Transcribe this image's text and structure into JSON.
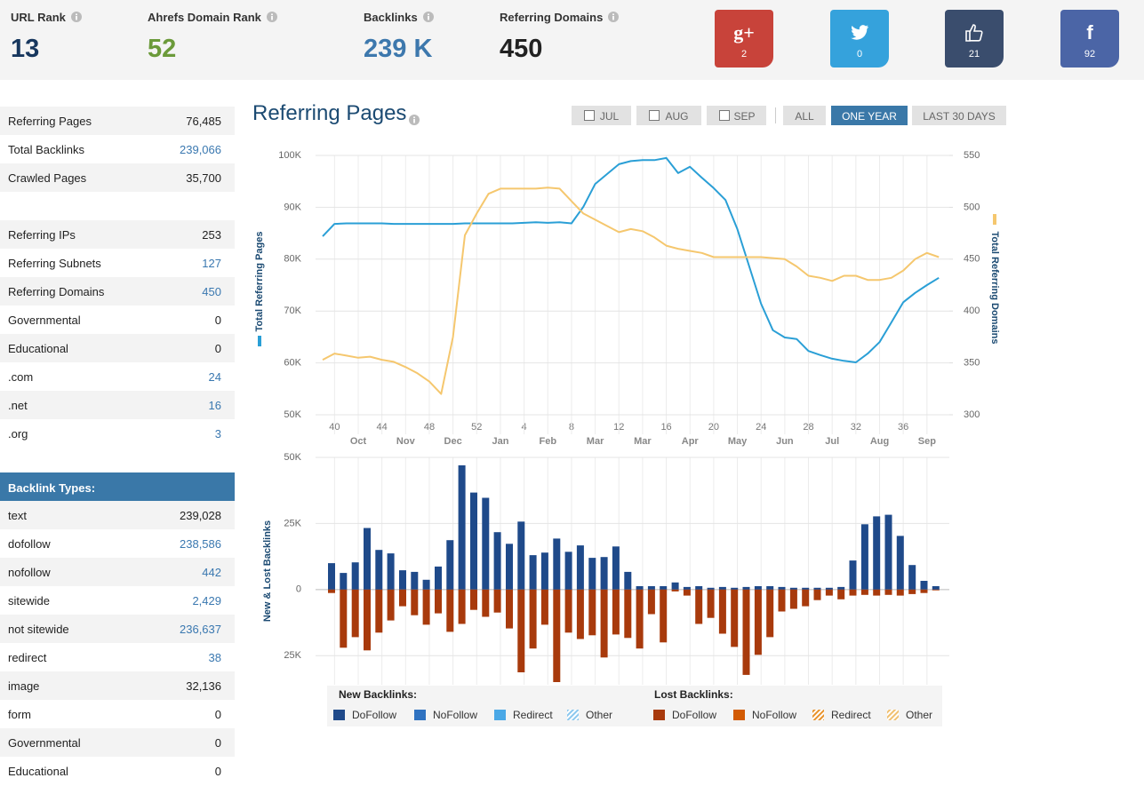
{
  "header": {
    "stats": [
      {
        "label": "URL Rank",
        "value": 13,
        "color": "#17375e"
      },
      {
        "label": "Ahrefs Domain Rank",
        "value": 52,
        "color": "#6b9a3a"
      },
      {
        "label": "Backlinks",
        "value": "239 K",
        "color": "#3d78ad"
      },
      {
        "label": "Referring Domains",
        "value": 450,
        "color": "#222222"
      }
    ],
    "social": [
      {
        "icon": "g+",
        "count": 2,
        "color": "#c8433a"
      },
      {
        "count": 0,
        "color": "#35a2dc"
      },
      {
        "count": 21,
        "color": "#3a4d6d"
      },
      {
        "icon": "f",
        "count": 92,
        "color": "#4b65a6"
      }
    ]
  },
  "sidebar": {
    "summary": [
      {
        "label": "Referring Pages",
        "value": "76,485"
      },
      {
        "label": "Total Backlinks",
        "value": "239,066",
        "link": true
      },
      {
        "label": "Crawled Pages",
        "value": "35,700"
      }
    ],
    "domains": [
      {
        "label": "Referring IPs",
        "value": "253"
      },
      {
        "label": "Referring Subnets",
        "value": "127",
        "link": true
      },
      {
        "label": "Referring Domains",
        "value": "450",
        "link": true
      },
      {
        "label": "Governmental",
        "value": "0"
      },
      {
        "label": "Educational",
        "value": "0"
      },
      {
        "label": ".com",
        "value": "24",
        "link": true
      },
      {
        "label": ".net",
        "value": "16",
        "link": true
      },
      {
        "label": ".org",
        "value": "3",
        "link": true
      }
    ],
    "types_title": "Backlink Types:",
    "types": [
      {
        "label": "text",
        "value": "239,028"
      },
      {
        "label": "dofollow",
        "value": "238,586",
        "link": true
      },
      {
        "label": "nofollow",
        "value": "442",
        "link": true
      },
      {
        "label": "sitewide",
        "value": "2,429",
        "link": true
      },
      {
        "label": "not sitewide",
        "value": "236,637",
        "link": true
      },
      {
        "label": "redirect",
        "value": "38",
        "link": true
      },
      {
        "label": "image",
        "value": "32,136"
      },
      {
        "label": "form",
        "value": "0"
      },
      {
        "label": "Governmental",
        "value": "0"
      },
      {
        "label": "Educational",
        "value": "0"
      }
    ]
  },
  "chart": {
    "title": "Referring Pages",
    "filters": [
      {
        "label": "JUL",
        "checkbox": true
      },
      {
        "label": "AUG",
        "checkbox": true
      },
      {
        "label": "SEP",
        "checkbox": true
      },
      {
        "label": "ALL"
      },
      {
        "label": "ONE YEAR",
        "active": true
      },
      {
        "label": "LAST 30 DAYS"
      }
    ]
  },
  "chart_data": [
    {
      "type": "line",
      "ylabel": "Total Referring Pages",
      "y2label": "Total Referring Domains",
      "categories": [
        null,
        "40",
        null,
        null,
        null,
        "44",
        null,
        null,
        null,
        "48",
        null,
        null,
        null,
        "52",
        null,
        null,
        null,
        "4",
        null,
        null,
        null,
        "8",
        null,
        null,
        null,
        "12",
        null,
        null,
        null,
        "16",
        null,
        null,
        null,
        "20",
        null,
        null,
        null,
        "24",
        null,
        null,
        null,
        "28",
        null,
        null,
        null,
        "32",
        null,
        null,
        null,
        "36",
        null,
        null,
        null
      ],
      "months": [
        null,
        null,
        null,
        "Oct",
        null,
        null,
        null,
        "Nov",
        null,
        null,
        null,
        "Dec",
        null,
        null,
        null,
        "Jan",
        null,
        null,
        null,
        "Feb",
        null,
        null,
        null,
        "Mar",
        null,
        null,
        null,
        "Mar",
        null,
        null,
        null,
        "Apr",
        null,
        null,
        null,
        "May",
        null,
        null,
        null,
        "Jun",
        null,
        null,
        null,
        "Jul",
        null,
        null,
        null,
        "Aug",
        null,
        null,
        null,
        "Sep",
        null
      ],
      "ylim": [
        50000,
        100000
      ],
      "yticks": [
        {
          "value": 50000,
          "label": "50K"
        },
        {
          "value": 60000,
          "label": "60K"
        },
        {
          "value": 70000,
          "label": "70K"
        },
        {
          "value": 80000,
          "label": "80K"
        },
        {
          "value": 90000,
          "label": "90K"
        },
        {
          "value": 100000,
          "label": "100K"
        }
      ],
      "y2lim": [
        300,
        550
      ],
      "y2ticks": [
        300,
        350,
        400,
        450,
        500,
        550
      ],
      "grid": true,
      "series": [
        {
          "color": "#2a9fd6",
          "values": [
            84400,
            86800,
            86900,
            86900,
            86900,
            86900,
            86800,
            86800,
            86800,
            86800,
            86800,
            86800,
            86900,
            86900,
            86900,
            86900,
            86900,
            87000,
            87100,
            87000,
            87100,
            86900,
            90100,
            94500,
            96400,
            98300,
            98900,
            99100,
            99100,
            99500,
            96600,
            97800,
            95700,
            93700,
            91400,
            85800,
            78600,
            71400,
            66300,
            64900,
            64600,
            62300,
            61500,
            60800,
            60400,
            60100,
            61800,
            64000,
            67800,
            71700,
            73500,
            75000,
            76400
          ]
        },
        {
          "color": "#f5c76e",
          "axis": "y2",
          "values": [
            353,
            359,
            357,
            355,
            356,
            353,
            351,
            346,
            340,
            332,
            320,
            375,
            473,
            494,
            513,
            518,
            518,
            518,
            518,
            519,
            518,
            506,
            494,
            488,
            482,
            476,
            479,
            477,
            471,
            463,
            460,
            458,
            456,
            452,
            452,
            452,
            452,
            452,
            451,
            450,
            443,
            434,
            432,
            429,
            434,
            434,
            430,
            430,
            432,
            439,
            450,
            456,
            452
          ]
        }
      ]
    },
    {
      "type": "bar",
      "ylabel": "New & Lost Backlinks",
      "ylim": [
        -36000,
        50000
      ],
      "yticks": [
        {
          "value": -25000,
          "label": "25K"
        },
        0,
        {
          "value": 25000,
          "label": "25K"
        },
        {
          "value": 50000,
          "label": "50K"
        }
      ],
      "grid": true,
      "legend_groups": [
        "New Backlinks:",
        "Lost Backlinks:"
      ],
      "series": [
        {
          "name": "DoFollow",
          "group": 0,
          "color": "#1f4a8a",
          "values": [
            10000,
            6300,
            10300,
            23300,
            15000,
            13700,
            7300,
            6700,
            3700,
            8700,
            18700,
            47000,
            36700,
            34700,
            21700,
            17300,
            25700,
            13000,
            14000,
            19300,
            14300,
            16700,
            12000,
            12300,
            16300,
            6700,
            1300,
            1300,
            1300,
            2700,
            1000,
            1300,
            700,
            1000,
            700,
            1000,
            1300,
            1300,
            1000,
            700,
            700,
            700,
            700,
            1000,
            11000,
            24700,
            27700,
            28300,
            20300,
            9300,
            3300,
            1300
          ]
        },
        {
          "name": "NoFollow",
          "group": 0,
          "color": "#2f72c0"
        },
        {
          "name": "Redirect",
          "group": 0,
          "color": "#4aa8e6"
        },
        {
          "name": "Other",
          "group": 0,
          "color": "#8cc8ee",
          "hatched": true
        },
        {
          "name": "DoFollow",
          "group": 1,
          "color": "#a83a0c",
          "values": [
            -1300,
            -22000,
            -18000,
            -23000,
            -16300,
            -11700,
            -6300,
            -9700,
            -13300,
            -9000,
            -16000,
            -13000,
            -7700,
            -10300,
            -8700,
            -14700,
            -31300,
            -22300,
            -13300,
            -35000,
            -16300,
            -18700,
            -17300,
            -25700,
            -17000,
            -18300,
            -22300,
            -9300,
            -20000,
            -700,
            -2300,
            -13000,
            -10700,
            -16700,
            -21700,
            -32300,
            -24700,
            -18000,
            -8300,
            -7300,
            -6300,
            -4000,
            -2300,
            -3700,
            -2300,
            -2000,
            -2300,
            -2000,
            -2300,
            -1700,
            -1300,
            -300
          ]
        },
        {
          "name": "NoFollow",
          "group": 1,
          "color": "#d25a02"
        },
        {
          "name": "Redirect",
          "group": 1,
          "color": "#e8922a",
          "hatched": true
        },
        {
          "name": "Other",
          "group": 1,
          "color": "#f0c070",
          "hatched": true
        }
      ]
    }
  ]
}
